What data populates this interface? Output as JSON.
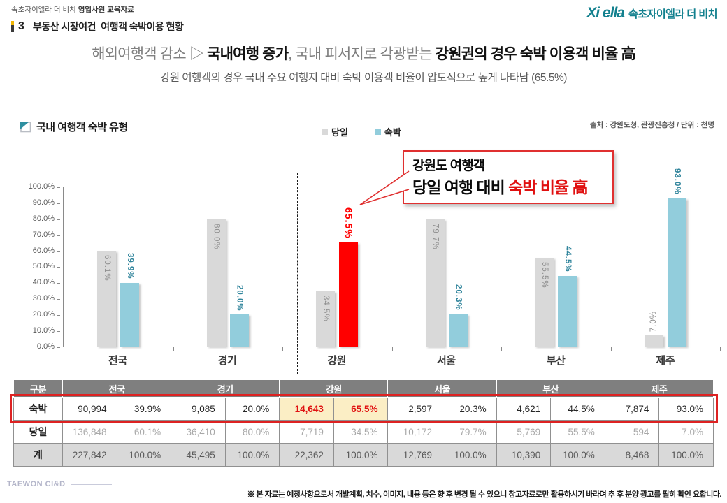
{
  "header": {
    "doc_label_regular": "속초자이엘라 더 비치 ",
    "doc_label_bold": "영업사원 교육자료",
    "section_number": "3",
    "section_title": "부동산 시장여건_여행객 숙박이용 현황",
    "logo": {
      "brand": "Xi ella",
      "name": "속초자이엘라 더 비치",
      "color": "#12808E"
    }
  },
  "headline": {
    "part1_gray": "해외여행객 감소 ▷ ",
    "part2_bold": "국내여행 증가",
    "part3_gray": ", 국내 피서지로 각광받는 ",
    "part4_bold": "강원권의 경우 숙박 이용객 비율 高",
    "subtitle": "강원 여행객의 경우 국내 주요 여행지 대비 숙박 이용객 비율이 압도적으로 높게 나타남 (65.5%)"
  },
  "chart": {
    "title": "국내 여행객 숙박 유형",
    "legend": [
      {
        "label": "당일",
        "color": "#D9D9D9"
      },
      {
        "label": "숙박",
        "color": "#92CDDC"
      }
    ],
    "source": "출처 : 강원도청, 관광진흥청 / 단위 : 천명",
    "callout": {
      "line1": "강원도 여행객",
      "line2_black": "당일 여행 대비 ",
      "line2_red": "숙박 비율 高"
    }
  },
  "chart_data": {
    "type": "bar",
    "title": "국내 여행객 숙박 유형",
    "categories": [
      "전국",
      "경기",
      "강원",
      "서울",
      "부산",
      "제주"
    ],
    "series": [
      {
        "name": "당일",
        "values": [
          60.1,
          80.0,
          34.5,
          79.7,
          55.5,
          7.0
        ],
        "labels": [
          "60.1%",
          "80.0%",
          "34.5%",
          "79.7%",
          "55.5%",
          "7.0%"
        ]
      },
      {
        "name": "숙박",
        "values": [
          39.9,
          20.0,
          65.5,
          20.3,
          44.5,
          93.0
        ],
        "labels": [
          "39.9%",
          "20.0%",
          "65.5%",
          "20.3%",
          "44.5%",
          "93.0%"
        ]
      }
    ],
    "ylim": [
      0,
      100
    ],
    "ylabel_ticks": [
      "100.0%",
      "90.0%",
      "80.0%",
      "70.0%",
      "60.0%",
      "50.0%",
      "40.0%",
      "30.0%",
      "20.0%",
      "10.0%",
      "0.0%"
    ],
    "grid": false,
    "legend_position": "top-center",
    "highlight_category": "강원",
    "colors": {
      "당일": "#D9D9D9",
      "숙박": "#92CDDC",
      "highlight": "#FF0000"
    }
  },
  "table": {
    "col_header": "구분",
    "regions": [
      "전국",
      "경기",
      "강원",
      "서울",
      "부산",
      "제주"
    ],
    "rows": [
      {
        "label": "숙박",
        "cells": [
          "90,994",
          "39.9%",
          "9,085",
          "20.0%",
          "14,643",
          "65.5%",
          "2,597",
          "20.3%",
          "4,621",
          "44.5%",
          "7,874",
          "93.0%"
        ]
      },
      {
        "label": "당일",
        "cells": [
          "136,848",
          "60.1%",
          "36,410",
          "80.0%",
          "7,719",
          "34.5%",
          "10,172",
          "79.7%",
          "5,769",
          "55.5%",
          "594",
          "7.0%"
        ]
      },
      {
        "label": "계",
        "cells": [
          "227,842",
          "100.0%",
          "45,495",
          "100.0%",
          "22,362",
          "100.0%",
          "12,769",
          "100.0%",
          "10,390",
          "100.0%",
          "8,468",
          "100.0%"
        ]
      }
    ]
  },
  "footer": {
    "brand": "TAEWON CI&D",
    "disclaimer": "※ 본 자료는 예정사항으로서 개발계획, 치수, 이미지, 내용 등은 향 후 변경 될 수 있으니 참고자료로만 활용하시기 바라며 추 후 분양 광고를 필히 확인 요합니다."
  }
}
